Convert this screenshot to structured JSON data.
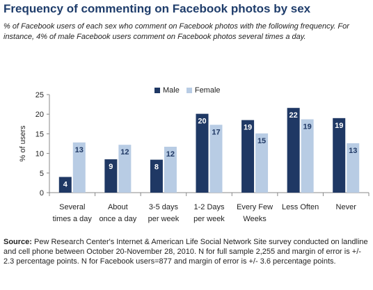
{
  "title": "Frequency of commenting on Facebook photos by sex",
  "subtitle": "% of Facebook users of each sex who comment on Facebook photos with the following frequency. For instance, 4% of male Facebook users comment on Facebook photos several times a day.",
  "source_label": "Source:",
  "source_text": "Pew Research Center's Internet & American Life Social Network Site survey conducted on landline and cell phone between October 20-November 28, 2010. N for full sample 2,255 and margin of error is +/- 2.3 percentage points. N for Facebook users=877 and margin of error is +/- 3.6 percentage points.",
  "chart_data": {
    "type": "bar",
    "categories": [
      [
        "Several",
        "times a day"
      ],
      [
        "About",
        "once a day"
      ],
      [
        "3-5 days",
        "per week"
      ],
      [
        "1-2 Days",
        "per week"
      ],
      [
        "Every Few",
        "Weeks"
      ],
      [
        "Less Often"
      ],
      [
        "Never"
      ]
    ],
    "series": [
      {
        "name": "Male",
        "color": "#1f3864",
        "values": [
          4,
          8.5,
          8.4,
          20.1,
          18.5,
          21.6,
          19
        ],
        "labels": [
          "4",
          "9",
          "8",
          "20",
          "19",
          "22",
          "19"
        ]
      },
      {
        "name": "Female",
        "color": "#b8cce4",
        "values": [
          12.8,
          12.2,
          11.7,
          17.3,
          15.1,
          18.7,
          12.6
        ],
        "labels": [
          "13",
          "12",
          "12",
          "17",
          "15",
          "19",
          "13"
        ]
      }
    ],
    "ylabel": "% of users",
    "xlabel": "",
    "ylim": [
      0,
      25
    ],
    "yticks": [
      0,
      5,
      10,
      15,
      20,
      25
    ],
    "legend_position": "top-center",
    "grid": false
  }
}
